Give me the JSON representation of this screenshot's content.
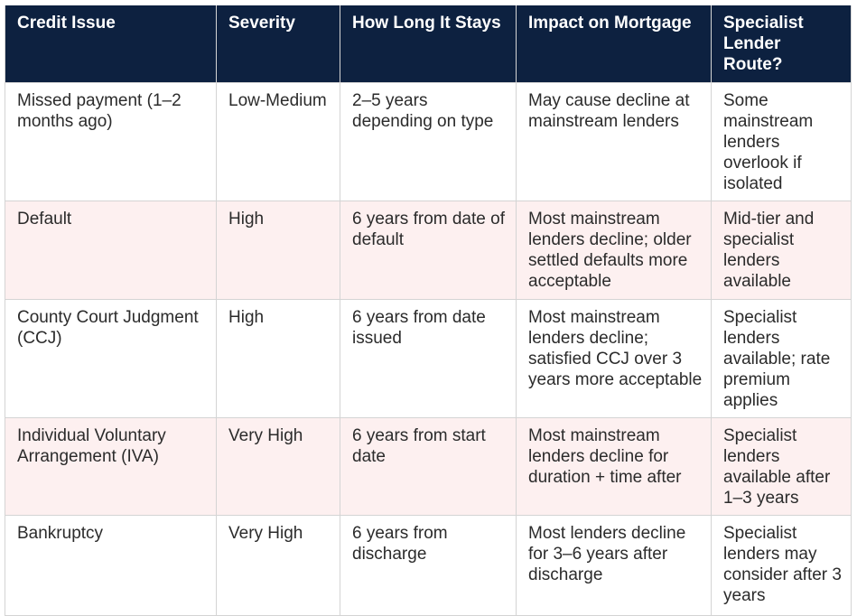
{
  "table": {
    "headers": [
      "Credit Issue",
      "Severity",
      "How Long It Stays",
      "Impact on Mortgage",
      "Specialist Lender Route?"
    ],
    "rows": [
      {
        "credit_issue": "Missed payment (1–2 months ago)",
        "severity": "Low-Medium",
        "how_long": "2–5 years depending on type",
        "impact": "May cause decline at mainstream lenders",
        "specialist_route": "Some mainstream lenders overlook if isolated"
      },
      {
        "credit_issue": "Default",
        "severity": "High",
        "how_long": "6 years from date of default",
        "impact": "Most mainstream lenders decline; older settled defaults more acceptable",
        "specialist_route": "Mid-tier and specialist lenders available"
      },
      {
        "credit_issue": "County Court Judgment (CCJ)",
        "severity": "High",
        "how_long": "6 years from date issued",
        "impact": "Most mainstream lenders decline; satisfied CCJ over 3 years more acceptable",
        "specialist_route": "Specialist lenders available; rate premium applies"
      },
      {
        "credit_issue": "Individual Voluntary Arrangement (IVA)",
        "severity": "Very High",
        "how_long": "6 years from start date",
        "impact": "Most mainstream lenders decline for duration + time after",
        "specialist_route": "Specialist lenders available after 1–3 years"
      },
      {
        "credit_issue": "Bankruptcy",
        "severity": "Very High",
        "how_long": "6 years from discharge",
        "impact": "Most lenders decline for 3–6 years after discharge",
        "specialist_route": "Specialist lenders may consider after 3 years"
      }
    ]
  },
  "colors": {
    "header_background": "#0d2140",
    "header_text": "#ffffff",
    "stripe_background": "#fdf0f0",
    "body_text": "#2b2b2b",
    "border": "#d4d4d4"
  }
}
